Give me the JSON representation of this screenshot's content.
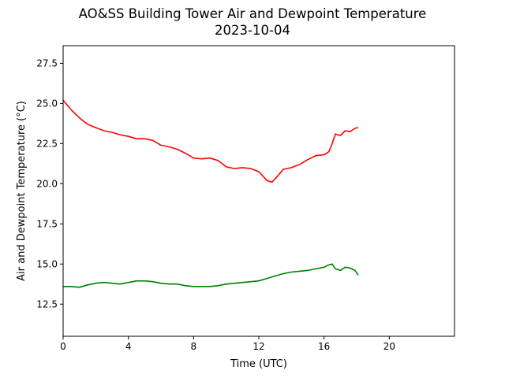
{
  "chart_data": {
    "type": "line",
    "title": "AO&SS Building Tower Air and Dewpoint Temperature",
    "subtitle": "2023-10-04",
    "xlabel": "Time (UTC)",
    "ylabel": "Air and Dewpoint Temperature (°C)",
    "xlim": [
      0,
      24
    ],
    "ylim": [
      10.5,
      28.6
    ],
    "xticks": [
      0,
      4,
      8,
      12,
      16,
      20
    ],
    "xtick_labels": [
      "0",
      "4",
      "8",
      "12",
      "16",
      "20"
    ],
    "yticks": [
      12.5,
      15.0,
      17.5,
      20.0,
      22.5,
      25.0,
      27.5
    ],
    "ytick_labels": [
      "12.5",
      "15.0",
      "17.5",
      "20.0",
      "22.5",
      "25.0",
      "27.5"
    ],
    "grid": false,
    "series": [
      {
        "color": "#ff0000",
        "x": [
          0,
          0.5,
          1,
          1.5,
          2,
          2.5,
          3,
          3.5,
          4,
          4.5,
          5,
          5.5,
          6,
          6.5,
          7,
          7.5,
          8,
          8.5,
          9,
          9.5,
          10,
          10.5,
          11,
          11.5,
          12,
          12.5,
          12.8,
          13,
          13.5,
          14,
          14.5,
          15,
          15.5,
          16,
          16.3,
          16.5,
          16.7,
          17,
          17.3,
          17.6,
          17.9,
          18.1
        ],
        "y": [
          25.2,
          24.6,
          24.1,
          23.7,
          23.5,
          23.3,
          23.2,
          23.05,
          22.95,
          22.8,
          22.8,
          22.7,
          22.4,
          22.3,
          22.15,
          21.9,
          21.6,
          21.55,
          21.6,
          21.45,
          21.05,
          20.95,
          21.0,
          20.95,
          20.75,
          20.2,
          20.1,
          20.3,
          20.9,
          21.0,
          21.2,
          21.5,
          21.75,
          21.8,
          22.0,
          22.5,
          23.1,
          23.0,
          23.3,
          23.25,
          23.45,
          23.5
        ]
      },
      {
        "color": "#008000",
        "x": [
          0,
          0.5,
          1,
          1.5,
          2,
          2.5,
          3,
          3.5,
          4,
          4.5,
          5,
          5.5,
          6,
          6.5,
          7,
          7.5,
          8,
          8.5,
          9,
          9.5,
          10,
          10.5,
          11,
          11.5,
          12,
          12.5,
          13,
          13.5,
          14,
          14.5,
          15,
          15.5,
          16,
          16.3,
          16.5,
          16.7,
          17,
          17.3,
          17.6,
          17.9,
          18.1
        ],
        "y": [
          13.6,
          13.6,
          13.55,
          13.7,
          13.8,
          13.85,
          13.8,
          13.75,
          13.85,
          13.95,
          13.95,
          13.9,
          13.8,
          13.75,
          13.75,
          13.65,
          13.6,
          13.6,
          13.6,
          13.65,
          13.75,
          13.8,
          13.85,
          13.9,
          13.95,
          14.1,
          14.25,
          14.4,
          14.5,
          14.55,
          14.6,
          14.7,
          14.8,
          14.95,
          15.0,
          14.7,
          14.6,
          14.8,
          14.75,
          14.6,
          14.3
        ]
      }
    ]
  }
}
